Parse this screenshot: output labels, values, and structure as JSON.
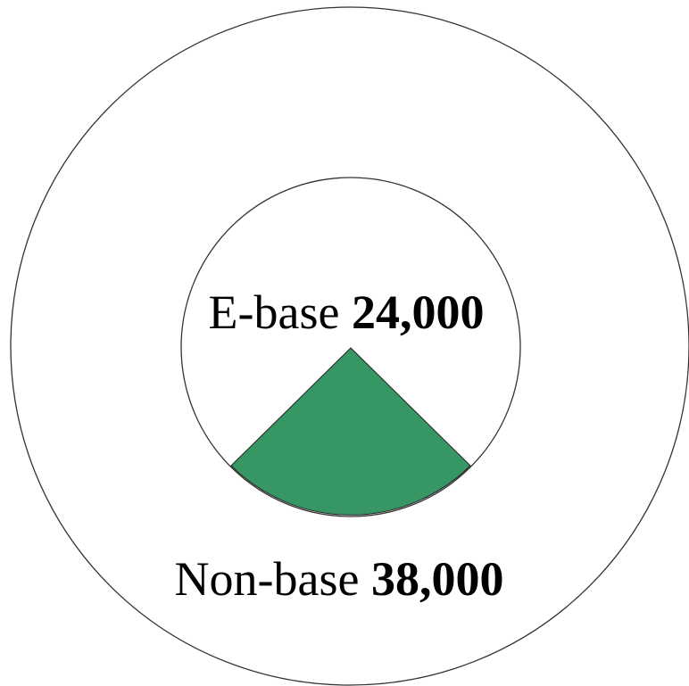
{
  "inner": {
    "name": "E-base",
    "value": "24,000"
  },
  "outer": {
    "name": "Non-base",
    "value": "38,000"
  }
}
